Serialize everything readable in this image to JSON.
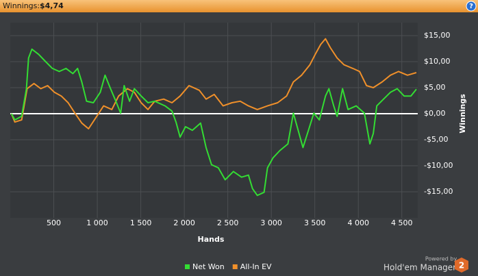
{
  "header": {
    "label": "Winnings:",
    "value": "$4,74",
    "help": "?"
  },
  "branding": {
    "powered_by": "Powered by",
    "product": "Hold'em Manager",
    "badge": "2"
  },
  "chart_data": {
    "type": "line",
    "x_label": "Hands",
    "y_label": "Winnings",
    "xlim": [
      0,
      4683
    ],
    "ylim": [
      -20,
      17.5
    ],
    "xticks": [
      500,
      {
        "value": 1000,
        "label": "1 000"
      },
      {
        "value": 1500,
        "label": "1 500"
      },
      {
        "value": 2000,
        "label": "2 000"
      },
      {
        "value": 2500,
        "label": "2 500"
      },
      {
        "value": 3000,
        "label": "3 000"
      },
      {
        "value": 3500,
        "label": "3 500"
      },
      {
        "value": 4000,
        "label": "4 000"
      },
      {
        "value": 4500,
        "label": "4 500"
      }
    ],
    "yticks": [
      {
        "value": 15,
        "label": "$15,00"
      },
      {
        "value": 10,
        "label": "$10,00"
      },
      {
        "value": 5,
        "label": "$5,00"
      },
      {
        "value": 0,
        "label": "$0,00"
      },
      {
        "value": -5,
        "label": "-$5,00"
      },
      {
        "value": -10,
        "label": "-$10,00"
      },
      {
        "value": -15,
        "label": "-$15,00"
      }
    ],
    "grid": true,
    "legend": "bottom",
    "series": [
      {
        "name": "Net Won",
        "color": "#33dd33",
        "x": [
          13,
          53,
          131,
          186,
          210,
          249,
          327,
          406,
          484,
          563,
          641,
          719,
          774,
          822,
          877,
          955,
          1034,
          1089,
          1152,
          1214,
          1269,
          1309,
          1371,
          1426,
          1504,
          1583,
          1661,
          1779,
          1858,
          1905,
          1952,
          2014,
          2093,
          2187,
          2250,
          2313,
          2391,
          2470,
          2564,
          2658,
          2737,
          2784,
          2839,
          2917,
          2956,
          3019,
          3097,
          3191,
          3254,
          3309,
          3364,
          3427,
          3489,
          3552,
          3623,
          3662,
          3717,
          3757,
          3819,
          3882,
          3976,
          4070,
          4133,
          4172,
          4212,
          4290,
          4369,
          4447,
          4526,
          4604,
          4667
        ],
        "values": [
          0,
          -1.2,
          -0.5,
          4.8,
          10.7,
          12.4,
          11.4,
          10,
          8.7,
          8.1,
          8.7,
          7.7,
          8.7,
          6.1,
          2.4,
          2.1,
          4.1,
          7.4,
          4.8,
          2.4,
          0.1,
          5.4,
          2.4,
          4.8,
          3.4,
          2.1,
          2.4,
          1.5,
          0.5,
          -1.6,
          -4.5,
          -2.5,
          -3.2,
          -1.8,
          -6.5,
          -9.8,
          -10.4,
          -12.7,
          -11.1,
          -12.2,
          -11.8,
          -14.4,
          -15.7,
          -15.1,
          -10.4,
          -8.5,
          -7.1,
          -5.8,
          0.1,
          -3.2,
          -6.5,
          -3.2,
          0.1,
          -1.2,
          3.4,
          4.8,
          1.5,
          -0.5,
          4.8,
          0.8,
          1.5,
          0.1,
          -5.8,
          -3.8,
          1.5,
          2.8,
          4.1,
          4.8,
          3.4,
          3.4,
          4.7
        ]
      },
      {
        "name": "All-In EV",
        "color": "#f0902a",
        "x": [
          13,
          53,
          131,
          194,
          272,
          351,
          429,
          508,
          586,
          665,
          743,
          822,
          900,
          994,
          1073,
          1167,
          1245,
          1347,
          1426,
          1504,
          1583,
          1661,
          1763,
          1858,
          1952,
          2054,
          2172,
          2250,
          2344,
          2446,
          2548,
          2642,
          2737,
          2839,
          2956,
          3073,
          3176,
          3254,
          3348,
          3443,
          3505,
          3568,
          3623,
          3678,
          3757,
          3835,
          3937,
          4015,
          4094,
          4172,
          4274,
          4369,
          4463,
          4565,
          4667
        ],
        "values": [
          0,
          -1.6,
          -1.2,
          4.8,
          5.8,
          4.8,
          5.4,
          4.1,
          3.4,
          2.1,
          0.1,
          -1.8,
          -2.9,
          -0.5,
          1.5,
          0.8,
          3.4,
          4.8,
          4.1,
          2.1,
          0.8,
          2.4,
          2.8,
          2.1,
          3.4,
          5.4,
          4.5,
          2.8,
          3.7,
          1.5,
          2.1,
          2.4,
          1.5,
          0.8,
          1.5,
          2.1,
          3.4,
          6.1,
          7.4,
          9.4,
          11.4,
          13.3,
          14.4,
          12.7,
          10.7,
          9.4,
          8.7,
          8.1,
          5.4,
          5,
          6.1,
          7.4,
          8.1,
          7.4,
          7.9
        ]
      }
    ]
  }
}
